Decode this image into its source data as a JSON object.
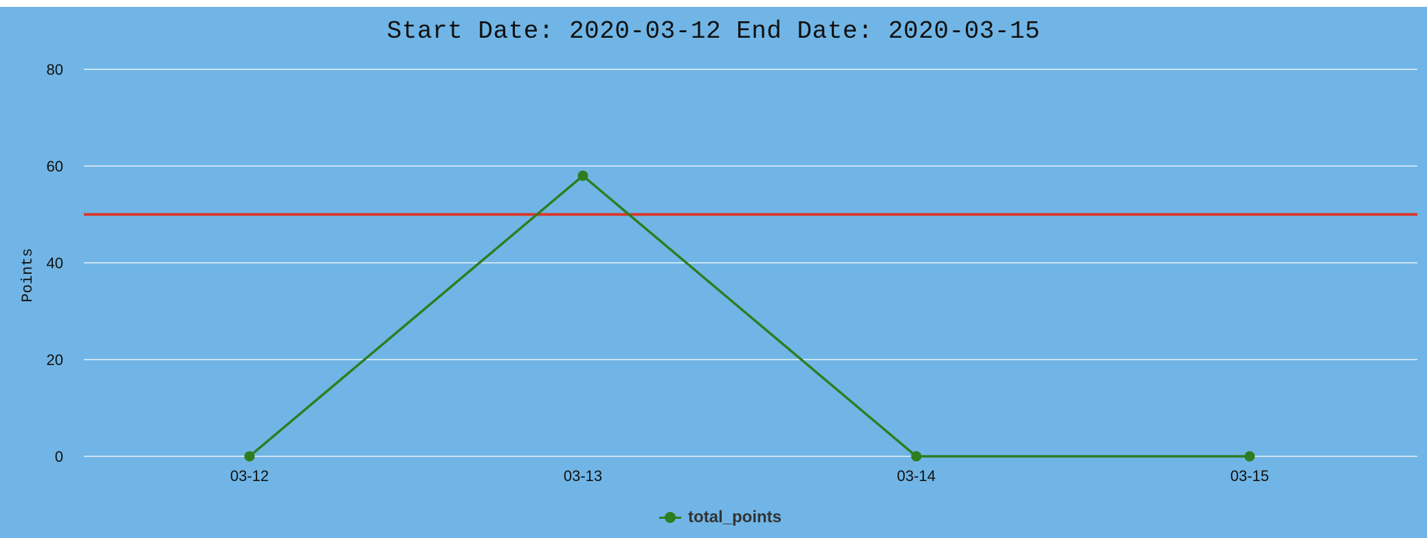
{
  "colors": {
    "panel_background": "#70b5e5",
    "gridline": "#ffffff",
    "series_line": "#2e7d1f",
    "reference_line": "#d9362b"
  },
  "chart_data": {
    "type": "line",
    "title": "Start Date: 2020-03-12 End Date: 2020-03-15",
    "xlabel": "",
    "ylabel": "Points",
    "categories": [
      "03-12",
      "03-13",
      "03-14",
      "03-15"
    ],
    "series": [
      {
        "name": "total_points",
        "values": [
          0,
          58,
          0,
          0
        ]
      }
    ],
    "reference_line": {
      "value": 50
    },
    "ylim": [
      0,
      80
    ],
    "yticks": [
      0,
      20,
      40,
      60,
      80
    ],
    "grid": true,
    "legend_position": "bottom-center"
  }
}
